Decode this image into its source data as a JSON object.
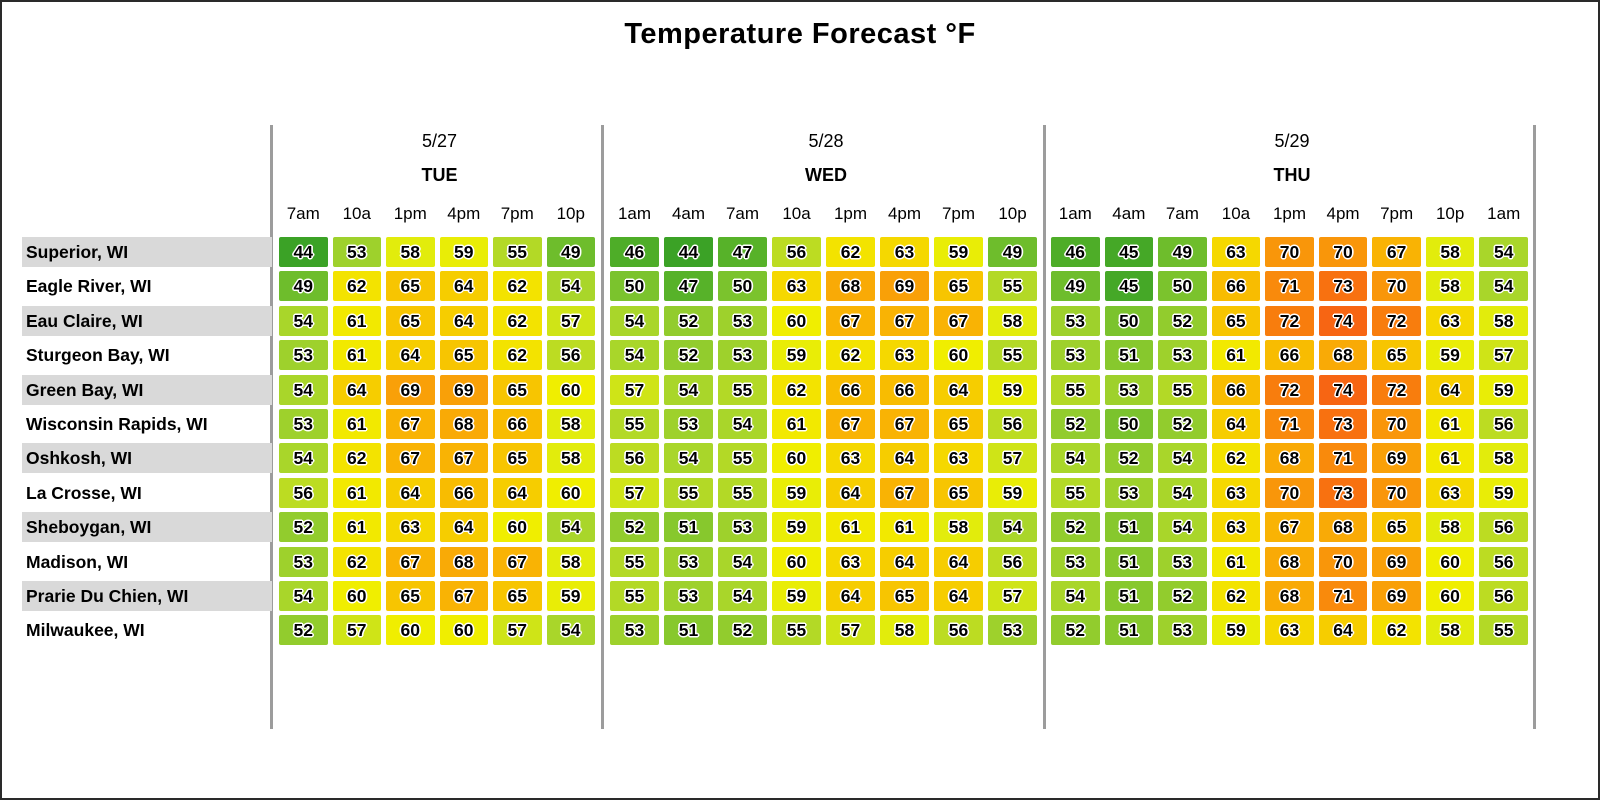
{
  "chart_data": {
    "type": "heatmap",
    "title": "Temperature Forecast °F",
    "unit": "°F",
    "day_groups": [
      {
        "date": "5/27",
        "day": "TUE",
        "times": [
          "7am",
          "10a",
          "1pm",
          "4pm",
          "7pm",
          "10p"
        ]
      },
      {
        "date": "5/28",
        "day": "WED",
        "times": [
          "1am",
          "4am",
          "7am",
          "10a",
          "1pm",
          "4pm",
          "7pm",
          "10p"
        ]
      },
      {
        "date": "5/29",
        "day": "THU",
        "times": [
          "1am",
          "4am",
          "7am",
          "10a",
          "1pm",
          "4pm",
          "7pm",
          "10p",
          "1am"
        ]
      }
    ],
    "rows": [
      {
        "city": "Superior, WI",
        "values": [
          [
            44,
            53,
            58,
            59,
            55,
            49
          ],
          [
            46,
            44,
            47,
            56,
            62,
            63,
            59,
            49
          ],
          [
            46,
            45,
            49,
            63,
            70,
            70,
            67,
            58,
            54
          ]
        ]
      },
      {
        "city": "Eagle River, WI",
        "values": [
          [
            49,
            62,
            65,
            64,
            62,
            54
          ],
          [
            50,
            47,
            50,
            63,
            68,
            69,
            65,
            55
          ],
          [
            49,
            45,
            50,
            66,
            71,
            73,
            70,
            58,
            54
          ]
        ]
      },
      {
        "city": "Eau Claire, WI",
        "values": [
          [
            54,
            61,
            65,
            64,
            62,
            57
          ],
          [
            54,
            52,
            53,
            60,
            67,
            67,
            67,
            58
          ],
          [
            53,
            50,
            52,
            65,
            72,
            74,
            72,
            63,
            58
          ]
        ]
      },
      {
        "city": "Sturgeon Bay, WI",
        "values": [
          [
            53,
            61,
            64,
            65,
            62,
            56
          ],
          [
            54,
            52,
            53,
            59,
            62,
            63,
            60,
            55
          ],
          [
            53,
            51,
            53,
            61,
            66,
            68,
            65,
            59,
            57
          ]
        ]
      },
      {
        "city": "Green Bay, WI",
        "values": [
          [
            54,
            64,
            69,
            69,
            65,
            60
          ],
          [
            57,
            54,
            55,
            62,
            66,
            66,
            64,
            59
          ],
          [
            55,
            53,
            55,
            66,
            72,
            74,
            72,
            64,
            59
          ]
        ]
      },
      {
        "city": "Wisconsin Rapids, WI",
        "values": [
          [
            53,
            61,
            67,
            68,
            66,
            58
          ],
          [
            55,
            53,
            54,
            61,
            67,
            67,
            65,
            56
          ],
          [
            52,
            50,
            52,
            64,
            71,
            73,
            70,
            61,
            56
          ]
        ]
      },
      {
        "city": "Oshkosh, WI",
        "values": [
          [
            54,
            62,
            67,
            67,
            65,
            58
          ],
          [
            56,
            54,
            55,
            60,
            63,
            64,
            63,
            57
          ],
          [
            54,
            52,
            54,
            62,
            68,
            71,
            69,
            61,
            58
          ]
        ]
      },
      {
        "city": "La Crosse, WI",
        "values": [
          [
            56,
            61,
            64,
            66,
            64,
            60
          ],
          [
            57,
            55,
            55,
            59,
            64,
            67,
            65,
            59
          ],
          [
            55,
            53,
            54,
            63,
            70,
            73,
            70,
            63,
            59
          ]
        ]
      },
      {
        "city": "Sheboygan, WI",
        "values": [
          [
            52,
            61,
            63,
            64,
            60,
            54
          ],
          [
            52,
            51,
            53,
            59,
            61,
            61,
            58,
            54
          ],
          [
            52,
            51,
            54,
            63,
            67,
            68,
            65,
            58,
            56
          ]
        ]
      },
      {
        "city": "Madison, WI",
        "values": [
          [
            53,
            62,
            67,
            68,
            67,
            58
          ],
          [
            55,
            53,
            54,
            60,
            63,
            64,
            64,
            56
          ],
          [
            53,
            51,
            53,
            61,
            68,
            70,
            69,
            60,
            56
          ]
        ]
      },
      {
        "city": "Prarie Du Chien, WI",
        "values": [
          [
            54,
            60,
            65,
            67,
            65,
            59
          ],
          [
            55,
            53,
            54,
            59,
            64,
            65,
            64,
            57
          ],
          [
            54,
            51,
            52,
            62,
            68,
            71,
            69,
            60,
            56
          ]
        ]
      },
      {
        "city": "Milwaukee, WI",
        "values": [
          [
            52,
            57,
            60,
            60,
            57,
            54
          ],
          [
            53,
            51,
            52,
            55,
            57,
            58,
            56,
            53
          ],
          [
            52,
            51,
            53,
            59,
            63,
            64,
            62,
            58,
            55
          ]
        ]
      }
    ],
    "color_scale": [
      {
        "value": 44,
        "color": "#3ba226"
      },
      {
        "value": 46,
        "color": "#4ead28"
      },
      {
        "value": 48,
        "color": "#60b72a"
      },
      {
        "value": 50,
        "color": "#7bc32d"
      },
      {
        "value": 52,
        "color": "#92cc2d"
      },
      {
        "value": 54,
        "color": "#a9d62a"
      },
      {
        "value": 56,
        "color": "#bcdc22"
      },
      {
        "value": 58,
        "color": "#e2ec0c"
      },
      {
        "value": 60,
        "color": "#f0ee00"
      },
      {
        "value": 62,
        "color": "#f3e300"
      },
      {
        "value": 64,
        "color": "#f6cd00"
      },
      {
        "value": 66,
        "color": "#f8bc01"
      },
      {
        "value": 68,
        "color": "#f9aa06"
      },
      {
        "value": 70,
        "color": "#f9960a"
      },
      {
        "value": 72,
        "color": "#f87d0d"
      },
      {
        "value": 74,
        "color": "#f76513"
      }
    ],
    "layout": {
      "row_stripe_color": "#d9d9d9",
      "divider_color": "#9c9c9c",
      "background": "#ffffff"
    }
  }
}
